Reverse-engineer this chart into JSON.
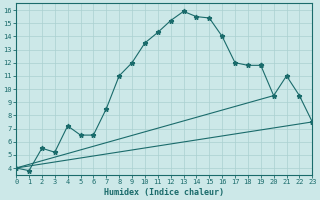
{
  "xlabel": "Humidex (Indice chaleur)",
  "background_color": "#cce8e8",
  "line_color": "#1a6b6b",
  "grid_color": "#aad0d0",
  "xlim": [
    0,
    23
  ],
  "ylim": [
    3.5,
    16.5
  ],
  "xticks": [
    0,
    1,
    2,
    3,
    4,
    5,
    6,
    7,
    8,
    9,
    10,
    11,
    12,
    13,
    14,
    15,
    16,
    17,
    18,
    19,
    20,
    21,
    22,
    23
  ],
  "yticks": [
    4,
    5,
    6,
    7,
    8,
    9,
    10,
    11,
    12,
    13,
    14,
    15,
    16
  ],
  "curve1_x": [
    0,
    1,
    2,
    3,
    4,
    5,
    6,
    7,
    8,
    9,
    10,
    11,
    12,
    13,
    14,
    15,
    16,
    17,
    18,
    19
  ],
  "curve1_y": [
    4.0,
    3.8,
    5.5,
    5.2,
    7.2,
    6.5,
    6.5,
    8.5,
    11.0,
    12.0,
    13.5,
    14.3,
    15.2,
    15.9,
    15.5,
    15.4,
    14.0,
    12.0,
    11.8,
    11.8
  ],
  "curve2_x": [
    19,
    20,
    21,
    22,
    23
  ],
  "curve2_y": [
    11.8,
    9.5,
    11.0,
    9.5,
    7.5
  ],
  "line1_x": [
    0,
    23
  ],
  "line1_y": [
    4.0,
    7.5
  ],
  "line2_x": [
    0,
    20
  ],
  "line2_y": [
    4.0,
    9.5
  ],
  "line3_x": [
    2,
    4,
    19
  ],
  "line3_y": [
    5.5,
    7.2,
    11.8
  ]
}
